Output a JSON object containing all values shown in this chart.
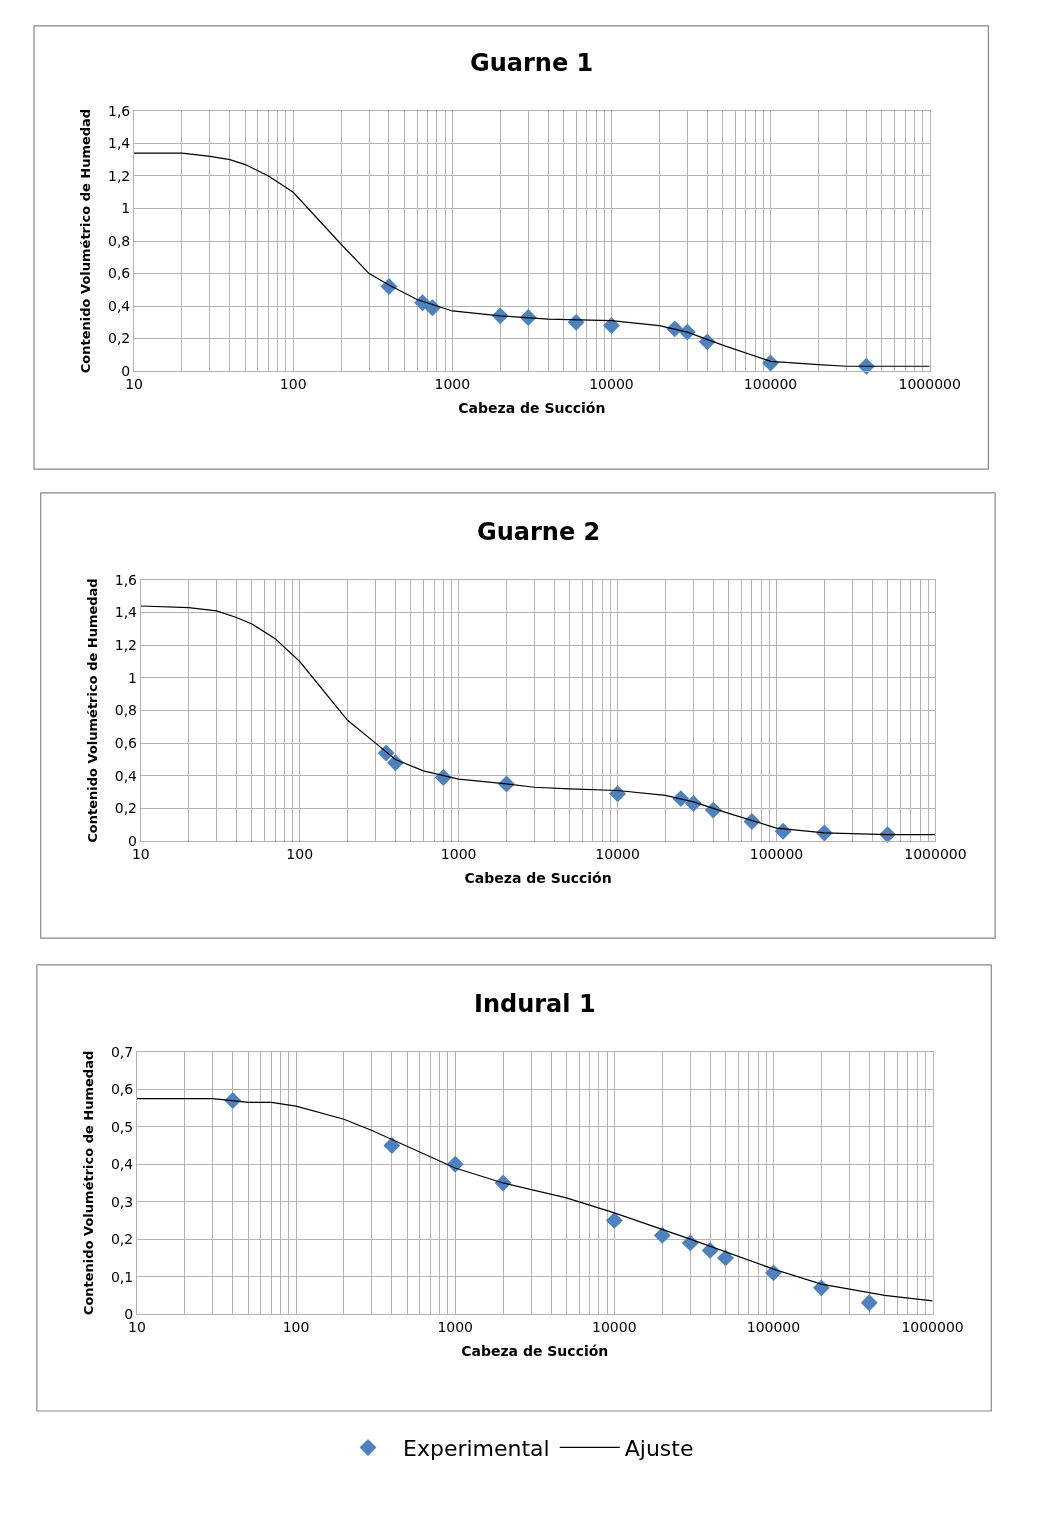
{
  "chart_data": [
    {
      "type": "line",
      "title": "Guarne 1",
      "xlabel": "Cabeza de Succión",
      "ylabel": "Contenido Volumétrico de Humedad",
      "log": "x",
      "grid": true,
      "xlim": [
        10,
        1000000
      ],
      "xticks": [
        10,
        100,
        1000,
        10000,
        100000,
        1000000
      ],
      "ylim": [
        0,
        1.6
      ],
      "yticks": [
        0,
        {
          "value": 0.2,
          "label": "0,2"
        },
        {
          "value": 0.4,
          "label": "0,4"
        },
        {
          "value": 0.6,
          "label": "0,6"
        },
        {
          "value": 0.8,
          "label": "0,8"
        },
        1,
        {
          "value": 1.2,
          "label": "1,2"
        },
        {
          "value": 1.4,
          "label": "1,4"
        },
        {
          "value": 1.6,
          "label": "1,6"
        }
      ],
      "legend": "bottom",
      "series": [
        {
          "name": "Experimental",
          "type": "scatter",
          "marker": "diamond",
          "color": "#4f81bd",
          "x": [
            400,
            650,
            750,
            2000,
            3000,
            6000,
            10000,
            25000,
            30000,
            40000,
            100000,
            400000
          ],
          "values": [
            0.52,
            0.42,
            0.39,
            0.34,
            0.33,
            0.3,
            0.28,
            0.26,
            0.24,
            0.18,
            0.05,
            0.03
          ]
        },
        {
          "name": "Ajuste",
          "type": "line",
          "color": "#000000",
          "x": [
            10,
            20,
            30,
            40,
            50,
            70,
            100,
            200,
            300,
            400,
            600,
            1000,
            2000,
            4000,
            10000,
            20000,
            30000,
            50000,
            100000,
            200000,
            300000,
            1000000
          ],
          "values": [
            1.34,
            1.34,
            1.32,
            1.3,
            1.27,
            1.2,
            1.1,
            0.78,
            0.6,
            0.53,
            0.44,
            0.37,
            0.34,
            0.32,
            0.31,
            0.28,
            0.24,
            0.16,
            0.06,
            0.04,
            0.03,
            0.03
          ]
        }
      ]
    },
    {
      "type": "line",
      "title": "Guarne 2",
      "xlabel": "Cabeza de Succión",
      "ylabel": "Contenido Volumétrico de Humedad",
      "log": "x",
      "grid": true,
      "xlim": [
        10,
        1000000
      ],
      "xticks": [
        10,
        100,
        1000,
        10000,
        100000,
        1000000
      ],
      "ylim": [
        0,
        1.6
      ],
      "yticks": [
        0,
        {
          "value": 0.2,
          "label": "0,2"
        },
        {
          "value": 0.4,
          "label": "0,4"
        },
        {
          "value": 0.6,
          "label": "0,6"
        },
        {
          "value": 0.8,
          "label": "0,8"
        },
        1,
        {
          "value": 1.2,
          "label": "1,2"
        },
        {
          "value": 1.4,
          "label": "1,4"
        },
        {
          "value": 1.6,
          "label": "1,6"
        }
      ],
      "legend": "bottom",
      "series": [
        {
          "name": "Experimental",
          "type": "scatter",
          "marker": "diamond",
          "color": "#4f81bd",
          "x": [
            350,
            400,
            800,
            2000,
            10000,
            25000,
            30000,
            40000,
            70000,
            110000,
            200000,
            500000
          ],
          "values": [
            0.54,
            0.48,
            0.39,
            0.35,
            0.29,
            0.26,
            0.23,
            0.19,
            0.12,
            0.06,
            0.05,
            0.04
          ]
        },
        {
          "name": "Ajuste",
          "type": "line",
          "color": "#000000",
          "x": [
            10,
            20,
            30,
            40,
            50,
            70,
            100,
            200,
            300,
            400,
            600,
            1000,
            2000,
            3000,
            5000,
            10000,
            20000,
            30000,
            50000,
            100000,
            200000,
            500000,
            1000000
          ],
          "values": [
            1.44,
            1.43,
            1.41,
            1.37,
            1.33,
            1.24,
            1.1,
            0.74,
            0.6,
            0.5,
            0.43,
            0.38,
            0.35,
            0.33,
            0.32,
            0.31,
            0.28,
            0.24,
            0.17,
            0.08,
            0.05,
            0.04,
            0.04
          ]
        }
      ]
    },
    {
      "type": "line",
      "title": "Indural 1",
      "xlabel": "Cabeza de Succión",
      "ylabel": "Contenido Volumétrico de Humedad",
      "log": "x",
      "grid": true,
      "xlim": [
        10,
        1000000
      ],
      "xticks": [
        10,
        100,
        1000,
        10000,
        100000,
        1000000
      ],
      "ylim": [
        0,
        0.7
      ],
      "yticks": [
        0,
        {
          "value": 0.1,
          "label": "0,1"
        },
        {
          "value": 0.2,
          "label": "0,2"
        },
        {
          "value": 0.3,
          "label": "0,3"
        },
        {
          "value": 0.4,
          "label": "0,4"
        },
        {
          "value": 0.5,
          "label": "0,5"
        },
        {
          "value": 0.6,
          "label": "0,6"
        },
        {
          "value": 0.7,
          "label": "0,7"
        }
      ],
      "legend": "bottom",
      "series": [
        {
          "name": "Experimental",
          "type": "scatter",
          "marker": "diamond",
          "color": "#4f81bd",
          "x": [
            40,
            400,
            1000,
            2000,
            10000,
            20000,
            30000,
            40000,
            50000,
            100000,
            200000,
            400000
          ],
          "values": [
            0.57,
            0.45,
            0.4,
            0.35,
            0.25,
            0.21,
            0.19,
            0.17,
            0.15,
            0.11,
            0.07,
            0.03
          ]
        },
        {
          "name": "Ajuste",
          "type": "line",
          "color": "#000000",
          "x": [
            10,
            30,
            50,
            70,
            100,
            200,
            300,
            1000,
            2000,
            5000,
            10000,
            30000,
            100000,
            200000,
            500000,
            1000000
          ],
          "values": [
            0.575,
            0.575,
            0.565,
            0.565,
            0.555,
            0.52,
            0.49,
            0.39,
            0.35,
            0.31,
            0.27,
            0.2,
            0.12,
            0.08,
            0.05,
            0.035
          ]
        }
      ]
    }
  ]
}
